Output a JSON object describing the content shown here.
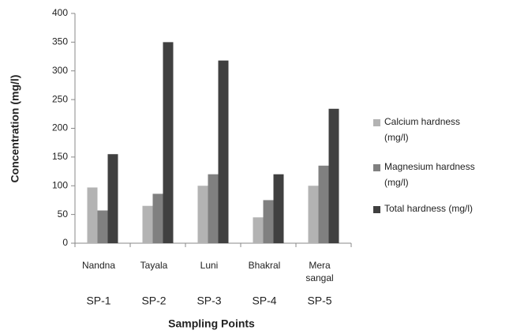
{
  "chart_data": {
    "type": "bar",
    "categories": [
      "Nandna",
      "Tayala",
      "Luni",
      "Bhakral",
      "Mera sangal"
    ],
    "group_labels": [
      "SP-1",
      "SP-2",
      "SP-3",
      "SP-4",
      "SP-5"
    ],
    "series": [
      {
        "name": "Calcium hardness (mg/l)",
        "color": "#b3b3b3",
        "values": [
          97,
          65,
          100,
          45,
          100
        ]
      },
      {
        "name": "Magnesium hardness (mg/l)",
        "color": "#808080",
        "values": [
          57,
          86,
          120,
          75,
          135
        ]
      },
      {
        "name": "Total hardness (mg/l)",
        "color": "#404040",
        "values": [
          155,
          350,
          318,
          120,
          234
        ]
      }
    ],
    "ylim": [
      0,
      400
    ],
    "yticks": [
      0,
      50,
      100,
      150,
      200,
      250,
      300,
      350,
      400
    ],
    "x_label": "Sampling Points",
    "y_label": "Concentration (mg/l)",
    "legend": "right",
    "grid": false
  }
}
